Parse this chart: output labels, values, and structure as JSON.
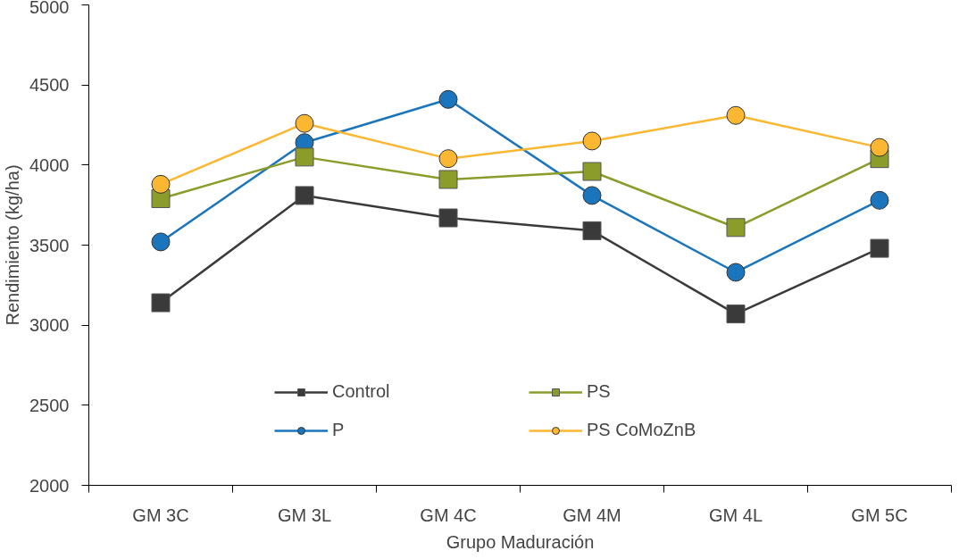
{
  "chart_data": {
    "type": "line",
    "xlabel": "Grupo Maduración",
    "ylabel": "Rendimiento (kg/ha)",
    "categories": [
      "GM 3C",
      "GM 3L",
      "GM 4C",
      "GM 4M",
      "GM 4L",
      "GM 5C"
    ],
    "ylim": [
      2000,
      5000
    ],
    "yticks": [
      2000,
      2500,
      3000,
      3500,
      4000,
      4500,
      5000
    ],
    "grid": false,
    "legend": "bottom",
    "series": [
      {
        "name": "Control",
        "color": "#3a3a3a",
        "marker": "square",
        "values": [
          3140,
          3810,
          3670,
          3590,
          3070,
          3480
        ]
      },
      {
        "name": "P",
        "color": "#1b75bc",
        "marker": "circle",
        "values": [
          3520,
          4140,
          4410,
          3810,
          3330,
          3780
        ]
      },
      {
        "name": "PS",
        "color": "#8c9c2a",
        "marker": "square",
        "values": [
          3790,
          4050,
          3910,
          3960,
          3610,
          4040
        ]
      },
      {
        "name": "PS CoMoZnB",
        "color": "#fbb732",
        "marker": "circle",
        "values": [
          3880,
          4260,
          4040,
          4150,
          4310,
          4110
        ]
      }
    ]
  }
}
